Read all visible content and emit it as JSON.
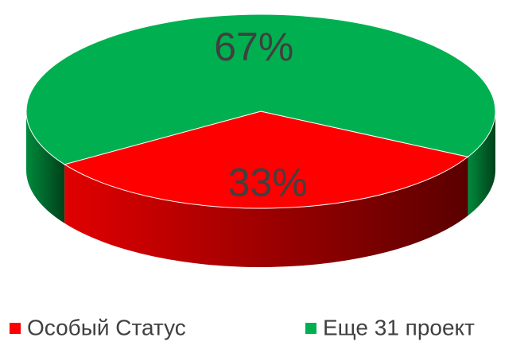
{
  "chart_data": {
    "type": "pie",
    "categories": [
      "Особый Статус",
      "Еще 31 проект"
    ],
    "values": [
      33,
      67
    ],
    "value_labels": [
      "33%",
      "67%"
    ],
    "colors": [
      "#ff0000",
      "#00b050"
    ],
    "legend": "bottom"
  }
}
